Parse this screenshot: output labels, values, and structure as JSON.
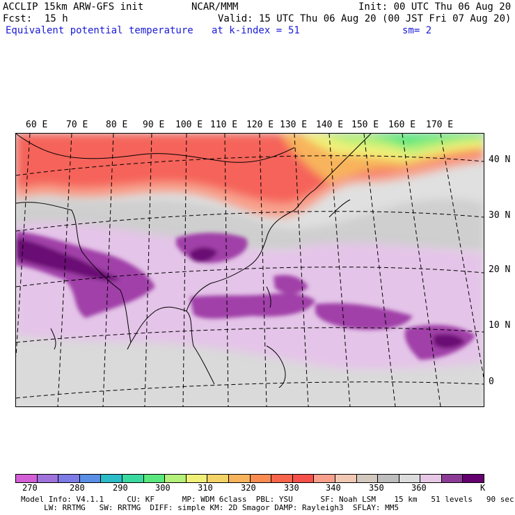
{
  "header": {
    "model": "ACCLIP 15km ARW-GFS init",
    "center": "NCAR/MMM",
    "init": "Init: 00 UTC Thu 06 Aug 20",
    "fcst_label": "Fcst:",
    "fcst_value": "15 h",
    "valid": "Valid: 15 UTC Thu 06 Aug 20 (00 JST Fri 07 Aug 20)",
    "field": "Equivalent potential temperature",
    "level": "at k-index =",
    "level_value": "51",
    "smooth": "sm= 2"
  },
  "map": {
    "longitude_labels": [
      "60 E",
      "70 E",
      "80 E",
      "90 E",
      "100 E",
      "110 E",
      "120 E",
      "130 E",
      "140 E",
      "150 E",
      "160 E",
      "170 E"
    ],
    "latitude_labels": [
      "40 N",
      "30 N",
      "20 N",
      "10 N",
      "0"
    ]
  },
  "colorbar": {
    "colors": [
      "#d35fd6",
      "#a072dc",
      "#7d7be6",
      "#5a8fe6",
      "#2bbcc8",
      "#3ad9a0",
      "#5ae87e",
      "#b4f07a",
      "#f0f078",
      "#f3d267",
      "#f8b45c",
      "#fa8c52",
      "#f7664c",
      "#f5504a",
      "#f8a08c",
      "#f0c8b4",
      "#d2c8be",
      "#bebebe",
      "#dcdcdc",
      "#e6c8e6",
      "#8c3c96",
      "#64006e"
    ],
    "tick_labels": [
      "270",
      "280",
      "290",
      "300",
      "310",
      "320",
      "330",
      "340",
      "350",
      "360"
    ],
    "unit": "K"
  },
  "footer": {
    "line1": "Model Info: V4.1.1     CU: KF      MP: WDM 6class  PBL: YSU      SF: Noah LSM    15 km   51 levels   90 sec",
    "line2": "     LW: RRTMG   SW: RRTMG  DIFF: simple KM: 2D Smagor DAMP: Rayleigh3  SFLAY: MM5"
  }
}
